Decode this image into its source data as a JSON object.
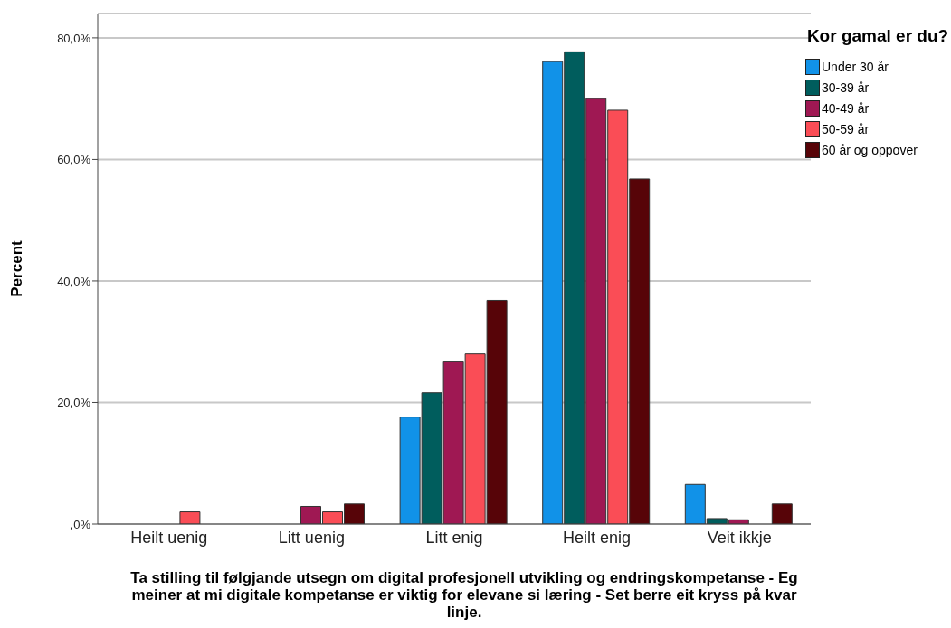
{
  "chart_data": {
    "type": "bar",
    "xlabel": "Ta stilling til følgjande utsegn om digital profesjonell utvikling og endringskompetanse - Eg meiner at mi digitale kompetanse er viktig for elevane si læring - Set berre eit kryss på kvar linje.",
    "ylabel": "Percent",
    "legend_title": "Kor gamal er du?",
    "categories": [
      "Heilt uenig",
      "Litt uenig",
      "Litt enig",
      "Heilt enig",
      "Veit ikkje"
    ],
    "series": [
      {
        "name": "Under 30 år",
        "color": "#1192e8",
        "values": [
          0,
          0,
          17.6,
          76.1,
          6.5
        ]
      },
      {
        "name": "30-39 år",
        "color": "#005d5d",
        "values": [
          0,
          0,
          21.6,
          77.7,
          0.9
        ]
      },
      {
        "name": "40-49 år",
        "color": "#9f1853",
        "values": [
          0,
          2.9,
          26.7,
          70.0,
          0.7
        ]
      },
      {
        "name": "50-59 år",
        "color": "#fa4d56",
        "values": [
          2.0,
          2.0,
          28.0,
          68.1,
          0
        ]
      },
      {
        "name": "60 år og oppover",
        "color": "#570408",
        "values": [
          0,
          3.3,
          36.8,
          56.8,
          3.3
        ]
      }
    ],
    "ylim": [
      0,
      84
    ],
    "yticks": [
      {
        "value": 0,
        "label": ",0%"
      },
      {
        "value": 20,
        "label": "20,0%"
      },
      {
        "value": 40,
        "label": "40,0%"
      },
      {
        "value": 60,
        "label": "60,0%"
      },
      {
        "value": 80,
        "label": "80,0%"
      }
    ],
    "grid": "y",
    "legend": "top right"
  }
}
